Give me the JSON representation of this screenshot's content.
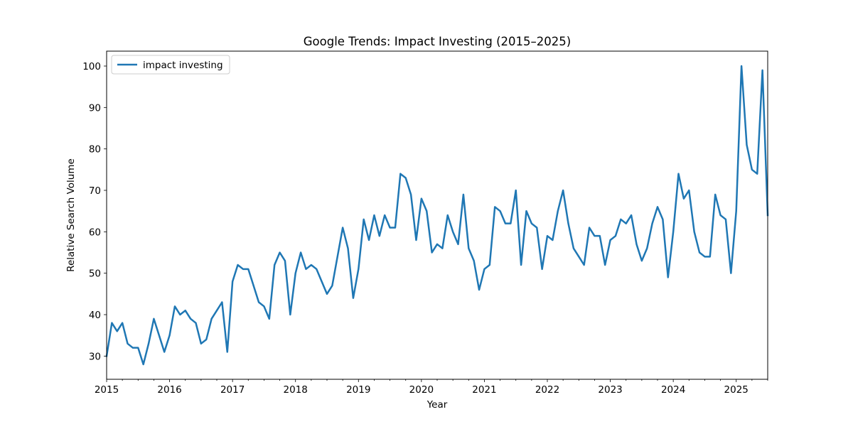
{
  "chart_data": {
    "type": "line",
    "title": "Google Trends: Impact Investing (2015–2025)",
    "xlabel": "Year",
    "ylabel": "Relative Search Volume",
    "x_ticks": [
      "2015",
      "2016",
      "2017",
      "2018",
      "2019",
      "2020",
      "2021",
      "2022",
      "2023",
      "2024",
      "2025"
    ],
    "y_ticks": [
      30,
      40,
      50,
      60,
      70,
      80,
      90,
      100
    ],
    "xlim": [
      "2015-01",
      "2025-07"
    ],
    "ylim": [
      24.4,
      103.6
    ],
    "grid": false,
    "legend_position": "top-left",
    "line_color": "#1f77b4",
    "x": [
      "2015-01",
      "2015-02",
      "2015-03",
      "2015-04",
      "2015-05",
      "2015-06",
      "2015-07",
      "2015-08",
      "2015-09",
      "2015-10",
      "2015-11",
      "2015-12",
      "2016-01",
      "2016-02",
      "2016-03",
      "2016-04",
      "2016-05",
      "2016-06",
      "2016-07",
      "2016-08",
      "2016-09",
      "2016-10",
      "2016-11",
      "2016-12",
      "2017-01",
      "2017-02",
      "2017-03",
      "2017-04",
      "2017-05",
      "2017-06",
      "2017-07",
      "2017-08",
      "2017-09",
      "2017-10",
      "2017-11",
      "2017-12",
      "2018-01",
      "2018-02",
      "2018-03",
      "2018-04",
      "2018-05",
      "2018-06",
      "2018-07",
      "2018-08",
      "2018-09",
      "2018-10",
      "2018-11",
      "2018-12",
      "2019-01",
      "2019-02",
      "2019-03",
      "2019-04",
      "2019-05",
      "2019-06",
      "2019-07",
      "2019-08",
      "2019-09",
      "2019-10",
      "2019-11",
      "2019-12",
      "2020-01",
      "2020-02",
      "2020-03",
      "2020-04",
      "2020-05",
      "2020-06",
      "2020-07",
      "2020-08",
      "2020-09",
      "2020-10",
      "2020-11",
      "2020-12",
      "2021-01",
      "2021-02",
      "2021-03",
      "2021-04",
      "2021-05",
      "2021-06",
      "2021-07",
      "2021-08",
      "2021-09",
      "2021-10",
      "2021-11",
      "2021-12",
      "2022-01",
      "2022-02",
      "2022-03",
      "2022-04",
      "2022-05",
      "2022-06",
      "2022-07",
      "2022-08",
      "2022-09",
      "2022-10",
      "2022-11",
      "2022-12",
      "2023-01",
      "2023-02",
      "2023-03",
      "2023-04",
      "2023-05",
      "2023-06",
      "2023-07",
      "2023-08",
      "2023-09",
      "2023-10",
      "2023-11",
      "2023-12",
      "2024-01",
      "2024-02",
      "2024-03",
      "2024-04",
      "2024-05",
      "2024-06",
      "2024-07",
      "2024-08",
      "2024-09",
      "2024-10",
      "2024-11",
      "2024-12",
      "2025-01",
      "2025-02",
      "2025-03",
      "2025-04",
      "2025-05",
      "2025-06",
      "2025-07"
    ],
    "series": [
      {
        "name": "impact investing",
        "values": [
          30,
          38,
          36,
          38,
          33,
          32,
          32,
          28,
          33,
          39,
          35,
          31,
          35,
          42,
          40,
          41,
          39,
          38,
          33,
          34,
          39,
          41,
          43,
          31,
          48,
          52,
          51,
          51,
          47,
          43,
          42,
          39,
          52,
          55,
          53,
          40,
          50,
          55,
          51,
          52,
          51,
          48,
          45,
          47,
          54,
          61,
          56,
          44,
          51,
          63,
          58,
          64,
          59,
          64,
          61,
          61,
          74,
          73,
          69,
          58,
          68,
          65,
          55,
          57,
          56,
          64,
          60,
          57,
          69,
          56,
          53,
          46,
          51,
          52,
          66,
          65,
          62,
          62,
          70,
          52,
          65,
          62,
          61,
          51,
          59,
          58,
          65,
          70,
          62,
          56,
          54,
          52,
          61,
          59,
          59,
          52,
          58,
          59,
          63,
          62,
          64,
          57,
          53,
          56,
          62,
          66,
          63,
          49,
          60,
          74,
          68,
          70,
          60,
          55,
          54,
          54,
          69,
          64,
          63,
          50,
          65,
          100,
          81,
          75,
          74,
          99,
          64
        ]
      }
    ]
  }
}
